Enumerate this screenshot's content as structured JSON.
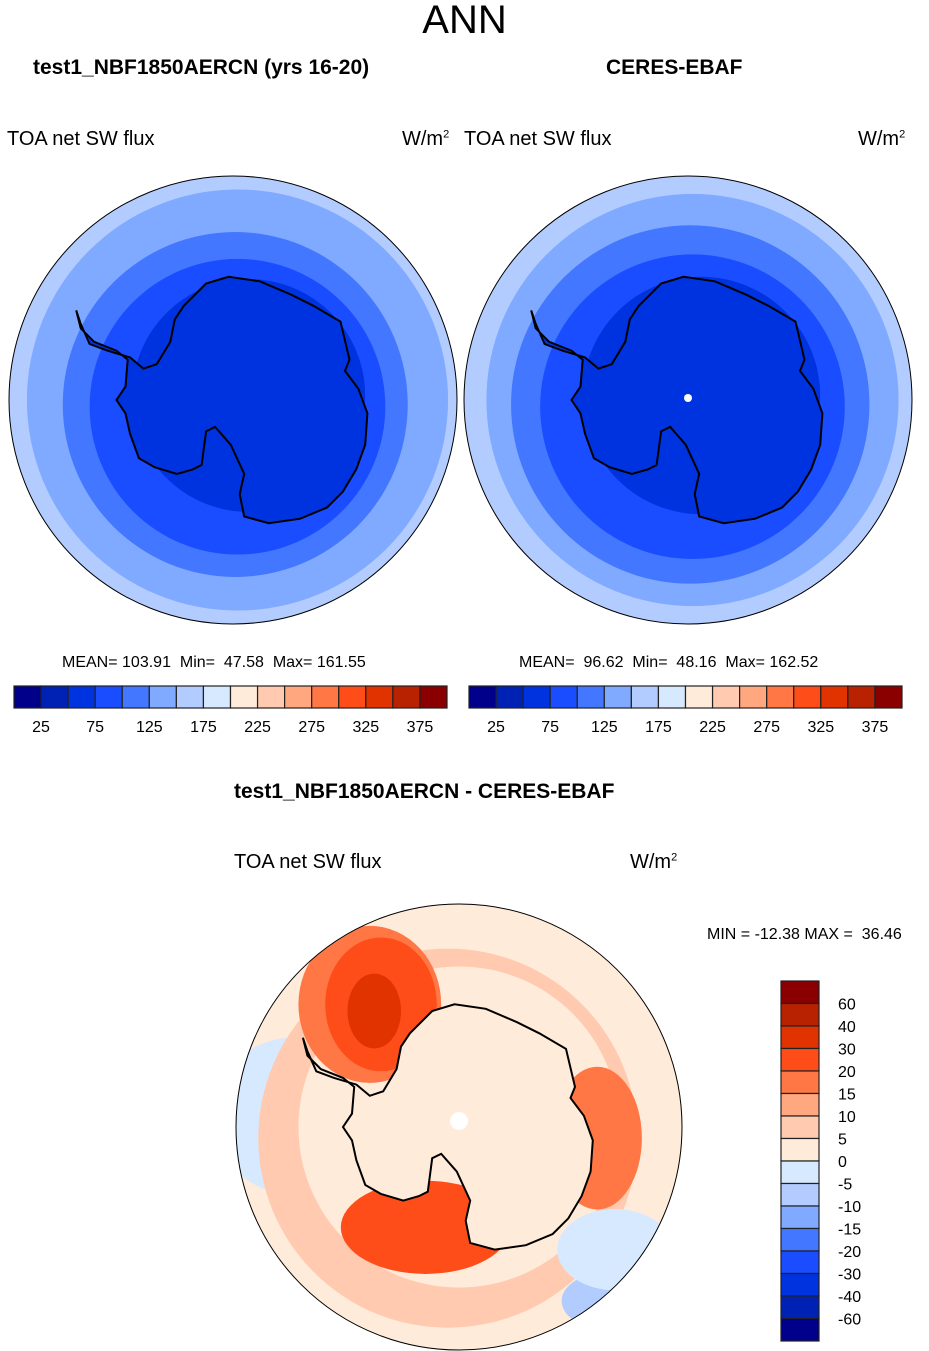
{
  "page": {
    "title": "ANN"
  },
  "chart_data": [
    {
      "type": "heatmap",
      "projection": "south-polar-stereographic",
      "title": "test1_NBF1850AERCN (yrs 16-20)",
      "variable_label": "TOA net SW flux",
      "units": "W/m",
      "units_sup": "2",
      "stats": {
        "mean_label": "MEAN=",
        "mean": "103.91",
        "min_label": "Min=",
        "min": "47.58",
        "max_label": "Max=",
        "max": "161.55"
      },
      "colorbar": {
        "orientation": "horizontal",
        "levels": [
          25,
          50,
          75,
          100,
          125,
          150,
          175,
          200,
          225,
          250,
          275,
          300,
          325,
          350,
          375
        ],
        "tick_labels": [
          "25",
          "75",
          "125",
          "175",
          "225",
          "275",
          "325",
          "375"
        ],
        "colors": [
          "#00008a",
          "#0022b4",
          "#0033e0",
          "#1a4dff",
          "#4477ff",
          "#80aaff",
          "#b3ccff",
          "#d7e9ff",
          "#ffebd9",
          "#ffcab0",
          "#ffa880",
          "#ff7744",
          "#ff4d19",
          "#e03300",
          "#b82200",
          "#8a0000"
        ]
      },
      "field_rings": [
        {
          "level_index": 6,
          "desc": "outer edge ~150-175"
        },
        {
          "level_index": 5,
          "desc": "125-150"
        },
        {
          "level_index": 4,
          "desc": "100-125"
        },
        {
          "level_index": 3,
          "desc": "75-100"
        },
        {
          "level_index": 2,
          "desc": "Antarctica 50-75"
        }
      ]
    },
    {
      "type": "heatmap",
      "projection": "south-polar-stereographic",
      "title": "CERES-EBAF",
      "variable_label": "TOA net SW flux",
      "units": "W/m",
      "units_sup": "2",
      "stats": {
        "mean_label": "MEAN=",
        "mean": "96.62",
        "min_label": "Min=",
        "min": "48.16",
        "max_label": "Max=",
        "max": "162.52"
      },
      "colorbar": {
        "orientation": "horizontal",
        "levels": [
          25,
          50,
          75,
          100,
          125,
          150,
          175,
          200,
          225,
          250,
          275,
          300,
          325,
          350,
          375
        ],
        "tick_labels": [
          "25",
          "75",
          "125",
          "175",
          "225",
          "275",
          "325",
          "375"
        ],
        "colors": [
          "#00008a",
          "#0022b4",
          "#0033e0",
          "#1a4dff",
          "#4477ff",
          "#80aaff",
          "#b3ccff",
          "#d7e9ff",
          "#ffebd9",
          "#ffcab0",
          "#ffa880",
          "#ff7744",
          "#ff4d19",
          "#e03300",
          "#b82200",
          "#8a0000"
        ]
      }
    },
    {
      "type": "heatmap",
      "projection": "south-polar-stereographic",
      "title": "test1_NBF1850AERCN - CERES-EBAF",
      "variable_label": "TOA net SW flux",
      "units": "W/m",
      "units_sup": "2",
      "stats": {
        "min_label": "MIN =",
        "min": "-12.38",
        "max_label": "MAX =",
        "max": "36.46"
      },
      "colorbar": {
        "orientation": "vertical",
        "levels": [
          -60,
          -40,
          -30,
          -20,
          -15,
          -10,
          -5,
          0,
          5,
          10,
          15,
          20,
          30,
          40,
          60
        ],
        "tick_labels": [
          "60",
          "40",
          "30",
          "20",
          "15",
          "10",
          "5",
          "0",
          "-5",
          "-10",
          "-15",
          "-20",
          "-30",
          "-40",
          "-60"
        ],
        "colors": [
          "#8a0000",
          "#b82200",
          "#e03300",
          "#ff4d19",
          "#ff7744",
          "#ffa880",
          "#ffcab0",
          "#ffebd9",
          "#d7e9ff",
          "#b3ccff",
          "#80aaff",
          "#4477ff",
          "#1a4dff",
          "#0033e0",
          "#0022b4",
          "#00008a"
        ]
      }
    }
  ]
}
